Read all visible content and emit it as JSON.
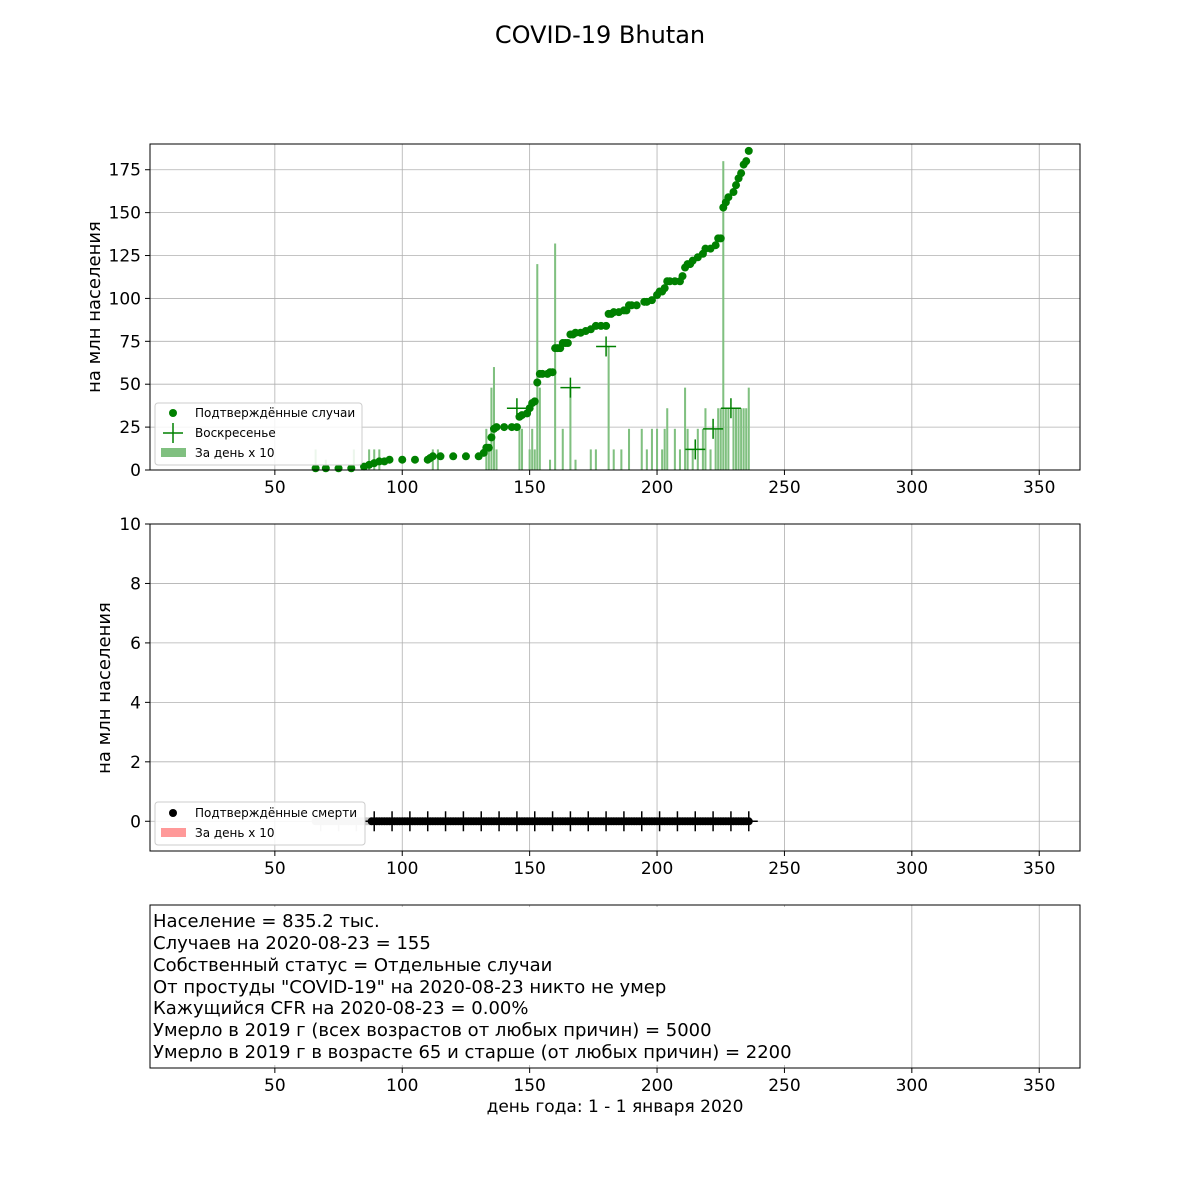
{
  "title": "COVID-19 Bhutan",
  "colors": {
    "cases": "#008000",
    "cases_bar": "#80c080",
    "deaths": "#000000",
    "deaths_bar": "#ff9999",
    "grid": "#b0b0b0"
  },
  "x_axis": {
    "range": [
      1,
      366
    ],
    "ticks": [
      50,
      100,
      150,
      200,
      250,
      300,
      350
    ],
    "label": "день года: 1 - 1 января 2020"
  },
  "chart_data": [
    {
      "type": "line",
      "panel": "cases",
      "ylabel": "на млн населения",
      "ylim": [
        0,
        190
      ],
      "yticks": [
        0,
        25,
        50,
        75,
        100,
        125,
        150,
        175
      ],
      "grid": true,
      "legend_placement": "lower-left",
      "legend": [
        "Подтверждённые случаи",
        "Воскресенье",
        "За день x 10"
      ],
      "series": [
        {
          "name": "Подтверждённые случаи",
          "style": "dots",
          "points": [
            [
              66,
              1
            ],
            [
              70,
              1
            ],
            [
              75,
              1
            ],
            [
              80,
              1
            ],
            [
              85,
              2
            ],
            [
              87,
              3
            ],
            [
              89,
              4
            ],
            [
              91,
              5
            ],
            [
              93,
              5
            ],
            [
              95,
              6
            ],
            [
              100,
              6
            ],
            [
              105,
              6
            ],
            [
              110,
              6
            ],
            [
              111,
              7
            ],
            [
              112,
              8
            ],
            [
              115,
              8
            ],
            [
              120,
              8
            ],
            [
              125,
              8
            ],
            [
              130,
              8
            ],
            [
              132,
              10
            ],
            [
              133,
              13
            ],
            [
              134,
              13
            ],
            [
              135,
              19
            ],
            [
              136,
              24
            ],
            [
              137,
              25
            ],
            [
              140,
              25
            ],
            [
              143,
              25
            ],
            [
              145,
              25
            ],
            [
              146,
              31
            ],
            [
              147,
              32
            ],
            [
              149,
              33
            ],
            [
              150,
              36
            ],
            [
              151,
              39
            ],
            [
              152,
              40
            ],
            [
              153,
              51
            ],
            [
              154,
              56
            ],
            [
              155,
              56
            ],
            [
              157,
              56
            ],
            [
              158,
              57
            ],
            [
              159,
              57
            ],
            [
              160,
              71
            ],
            [
              161,
              71
            ],
            [
              162,
              71
            ],
            [
              163,
              74
            ],
            [
              164,
              74
            ],
            [
              165,
              74
            ],
            [
              166,
              79
            ],
            [
              167,
              79
            ],
            [
              168,
              80
            ],
            [
              170,
              80
            ],
            [
              172,
              81
            ],
            [
              174,
              82
            ],
            [
              176,
              84
            ],
            [
              178,
              84
            ],
            [
              180,
              84
            ],
            [
              181,
              91
            ],
            [
              182,
              91
            ],
            [
              183,
              92
            ],
            [
              185,
              92
            ],
            [
              187,
              93
            ],
            [
              188,
              93
            ],
            [
              189,
              96
            ],
            [
              190,
              96
            ],
            [
              192,
              96
            ],
            [
              195,
              98
            ],
            [
              196,
              98
            ],
            [
              198,
              99
            ],
            [
              200,
              102
            ],
            [
              201,
              104
            ],
            [
              202,
              104
            ],
            [
              203,
              106
            ],
            [
              204,
              110
            ],
            [
              205,
              110
            ],
            [
              207,
              110
            ],
            [
              209,
              110
            ],
            [
              210,
              113
            ],
            [
              211,
              118
            ],
            [
              212,
              120
            ],
            [
              213,
              120
            ],
            [
              214,
              122
            ],
            [
              216,
              124
            ],
            [
              218,
              126
            ],
            [
              219,
              129
            ],
            [
              221,
              129
            ],
            [
              223,
              131
            ],
            [
              224,
              135
            ],
            [
              225,
              135
            ],
            [
              226,
              153
            ],
            [
              227,
              156
            ],
            [
              228,
              159
            ],
            [
              230,
              162
            ],
            [
              231,
              166
            ],
            [
              232,
              170
            ],
            [
              233,
              173
            ],
            [
              234,
              178
            ],
            [
              235,
              180
            ],
            [
              236,
              186
            ]
          ]
        },
        {
          "name": "Воскресенье",
          "style": "plus",
          "points": [
            [
              145,
              36
            ],
            [
              166,
              48
            ],
            [
              180,
              72
            ],
            [
              215,
              12
            ],
            [
              222,
              24
            ],
            [
              229,
              36
            ]
          ]
        },
        {
          "name": "За день x 10",
          "style": "bars",
          "points": [
            [
              66,
              12
            ],
            [
              70,
              6
            ],
            [
              81,
              12
            ],
            [
              87,
              12
            ],
            [
              89,
              12
            ],
            [
              91,
              12
            ],
            [
              112,
              12
            ],
            [
              114,
              12
            ],
            [
              133,
              24
            ],
            [
              134,
              12
            ],
            [
              135,
              48
            ],
            [
              136,
              60
            ],
            [
              137,
              12
            ],
            [
              146,
              24
            ],
            [
              147,
              24
            ],
            [
              150,
              12
            ],
            [
              151,
              24
            ],
            [
              152,
              12
            ],
            [
              153,
              120
            ],
            [
              154,
              48
            ],
            [
              158,
              6
            ],
            [
              160,
              132
            ],
            [
              163,
              24
            ],
            [
              166,
              48
            ],
            [
              168,
              6
            ],
            [
              174,
              12
            ],
            [
              176,
              12
            ],
            [
              181,
              72
            ],
            [
              183,
              12
            ],
            [
              186,
              12
            ],
            [
              189,
              24
            ],
            [
              194,
              24
            ],
            [
              196,
              12
            ],
            [
              198,
              24
            ],
            [
              200,
              24
            ],
            [
              202,
              12
            ],
            [
              203,
              24
            ],
            [
              204,
              36
            ],
            [
              207,
              24
            ],
            [
              209,
              12
            ],
            [
              211,
              48
            ],
            [
              212,
              24
            ],
            [
              214,
              12
            ],
            [
              216,
              24
            ],
            [
              218,
              24
            ],
            [
              219,
              36
            ],
            [
              221,
              12
            ],
            [
              223,
              24
            ],
            [
              224,
              36
            ],
            [
              225,
              36
            ],
            [
              226,
              180
            ],
            [
              227,
              36
            ],
            [
              228,
              36
            ],
            [
              230,
              36
            ],
            [
              231,
              36
            ],
            [
              232,
              36
            ],
            [
              233,
              36
            ],
            [
              234,
              36
            ],
            [
              235,
              36
            ],
            [
              236,
              48
            ]
          ]
        }
      ]
    },
    {
      "type": "line",
      "panel": "deaths",
      "ylabel": "на млн населения",
      "ylim": [
        -1,
        10
      ],
      "yticks": [
        0,
        2,
        4,
        6,
        8,
        10
      ],
      "grid": true,
      "legend_placement": "lower-left",
      "legend": [
        "Подтверждённые смерти",
        "За день x 10"
      ],
      "series": [
        {
          "name": "Подтверждённые смерти",
          "style": "dots",
          "x_start": 66,
          "x_end": 236,
          "value": 0
        },
        {
          "name": "Воскресенье",
          "style": "plus",
          "x_start": 68,
          "x_end": 236,
          "value": 0
        }
      ]
    }
  ],
  "info": {
    "lines": [
      "Население = 835.2 тыс.",
      "Случаев на 2020-08-23 = 155",
      "Собственный статус = Отдельные случаи",
      "От простуды \"COVID-19\" на 2020-08-23 никто не умер",
      "Кажущийся CFR на 2020-08-23 = 0.00%",
      "Умерло в 2019 г (всех возрастов от любых причин) = 5000",
      "Умерло в 2019 г в возрасте 65 и старше (от любых причин) = 2200"
    ]
  }
}
